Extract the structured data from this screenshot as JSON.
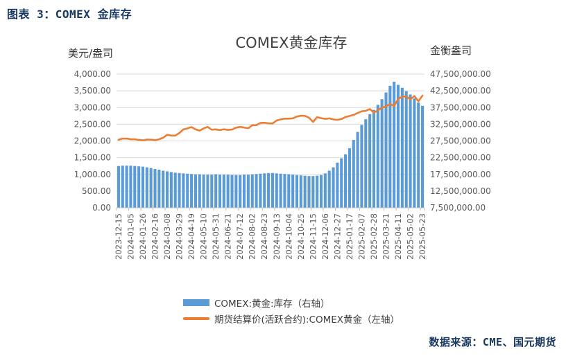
{
  "page": {
    "header_title": "图表 3：COMEX 金库存",
    "source": "数据来源：CME、国元期货"
  },
  "chart": {
    "title": "COMEX黄金库存",
    "left_axis_unit": "美元/盎司",
    "right_axis_unit": "金衡盎司",
    "left_ticks": [
      "4,000.00",
      "3,500.00",
      "3,000.00",
      "2,500.00",
      "2,000.00",
      "1,500.00",
      "1,000.00",
      "500.00",
      "0.00"
    ],
    "right_ticks": [
      "47,500,000.00",
      "42,500,000.00",
      "37,500,000.00",
      "32,500,000.00",
      "27,500,000.00",
      "22,500,000.00",
      "17,500,000.00",
      "12,500,000.00",
      "7,500,000.00"
    ],
    "legend": [
      {
        "label": "COMEX:黄金:库存（右轴）",
        "type": "bar",
        "color": "#5B9BD5"
      },
      {
        "label": "期货结算价(活跃合约):COMEX黄金（左轴）",
        "type": "line",
        "color": "#ED7D31"
      }
    ],
    "colors": {
      "bar": "#5B9BD5",
      "line": "#ED7D31",
      "gridline": "#D9D9D9",
      "axis": "#BFBFBF",
      "tick_text": "#595959",
      "heading": "#17375E",
      "chart_text": "#404040"
    }
  },
  "chart_data": {
    "type": "bar",
    "title": "COMEX黄金库存",
    "grid": true,
    "legend_position": "bottom",
    "x_label_every": 3,
    "x": [
      "2023-12-15",
      "2023-12-22",
      "2023-12-29",
      "2024-01-05",
      "2024-01-12",
      "2024-01-19",
      "2024-01-26",
      "2024-02-02",
      "2024-02-09",
      "2024-02-16",
      "2024-02-23",
      "2024-03-01",
      "2024-03-08",
      "2024-03-15",
      "2024-03-22",
      "2024-03-29",
      "2024-04-05",
      "2024-04-12",
      "2024-04-19",
      "2024-04-26",
      "2024-05-03",
      "2024-05-10",
      "2024-05-17",
      "2024-05-24",
      "2024-05-31",
      "2024-06-07",
      "2024-06-14",
      "2024-06-21",
      "2024-06-28",
      "2024-07-05",
      "2024-07-12",
      "2024-07-19",
      "2024-07-26",
      "2024-08-02",
      "2024-08-09",
      "2024-08-16",
      "2024-08-23",
      "2024-08-30",
      "2024-09-06",
      "2024-09-13",
      "2024-09-20",
      "2024-09-27",
      "2024-10-04",
      "2024-10-11",
      "2024-10-18",
      "2024-10-25",
      "2024-11-01",
      "2024-11-08",
      "2024-11-15",
      "2024-11-22",
      "2024-11-29",
      "2024-12-06",
      "2024-12-13",
      "2024-12-20",
      "2024-12-27",
      "2025-01-03",
      "2025-01-10",
      "2025-01-17",
      "2025-01-24",
      "2025-01-31",
      "2025-02-07",
      "2025-02-14",
      "2025-02-21",
      "2025-02-28",
      "2025-03-07",
      "2025-03-14",
      "2025-03-21",
      "2025-03-28",
      "2025-04-04",
      "2025-04-11",
      "2025-04-18",
      "2025-04-25",
      "2025-05-02",
      "2025-05-09",
      "2025-05-16",
      "2025-05-23"
    ],
    "x_tick_labels": [
      "2023-12-15",
      "2024-01-05",
      "2024-01-26",
      "2024-02-16",
      "2024-03-08",
      "2024-03-29",
      "2024-04-19",
      "2024-05-10",
      "2024-05-31",
      "2024-06-21",
      "2024-07-12",
      "2024-08-02",
      "2024-08-23",
      "2024-09-13",
      "2024-10-04",
      "2024-10-25",
      "2024-11-15",
      "2024-12-06",
      "2024-12-27",
      "2025-01-17",
      "2025-02-07",
      "2025-02-28",
      "2025-03-21",
      "2025-04-11",
      "2025-05-02",
      "2025-05-23"
    ],
    "left_axis": {
      "label": "美元/盎司",
      "min": 0,
      "max": 4000,
      "step": 500
    },
    "right_axis": {
      "label": "金衡盎司",
      "min": 7500000,
      "max": 47500000,
      "step": 5000000
    },
    "series": [
      {
        "name": "COMEX:黄金:库存（右轴）",
        "type": "bar",
        "axis": "right",
        "color": "#5B9BD5",
        "values": [
          20000000,
          20100000,
          20100000,
          20100000,
          20000000,
          19900000,
          19800000,
          19600000,
          19400000,
          19100000,
          18900000,
          18600000,
          18400000,
          18200000,
          18000000,
          17900000,
          17800000,
          17700000,
          17600000,
          17500000,
          17500000,
          17400000,
          17400000,
          17400000,
          17500000,
          17400000,
          17400000,
          17400000,
          17300000,
          17300000,
          17300000,
          17400000,
          17400000,
          17500000,
          17600000,
          17700000,
          17800000,
          17900000,
          17900000,
          17800000,
          17700000,
          17600000,
          17500000,
          17400000,
          17300000,
          17200000,
          17100000,
          17000000,
          17000000,
          17100000,
          17300000,
          17800000,
          18600000,
          19600000,
          21000000,
          22300000,
          23500000,
          25300000,
          27800000,
          30200000,
          32300000,
          34000000,
          35500000,
          36800000,
          38300000,
          40000000,
          42000000,
          44000000,
          45200000,
          44300000,
          43400000,
          42400000,
          41400000,
          40200000,
          39000000,
          38000000
        ]
      },
      {
        "name": "期货结算价(活跃合约):COMEX黄金（左轴）",
        "type": "line",
        "axis": "left",
        "color": "#ED7D31",
        "values": [
          2036,
          2070,
          2072,
          2050,
          2052,
          2029,
          2017,
          2040,
          2039,
          2024,
          2049,
          2096,
          2186,
          2162,
          2160,
          2238,
          2345,
          2374,
          2414,
          2347,
          2309,
          2375,
          2418,
          2335,
          2346,
          2325,
          2349,
          2331,
          2340,
          2398,
          2421,
          2399,
          2381,
          2470,
          2473,
          2538,
          2546,
          2528,
          2525,
          2611,
          2646,
          2668,
          2668,
          2676,
          2730,
          2755,
          2749,
          2695,
          2570,
          2712,
          2681,
          2660,
          2676,
          2645,
          2632,
          2655,
          2715,
          2749,
          2778,
          2835,
          2888,
          2901,
          2954,
          2848,
          2914,
          3001,
          3028,
          3114,
          3038,
          3255,
          3328,
          3330,
          3243,
          3344,
          3187,
          3357
        ]
      }
    ]
  }
}
